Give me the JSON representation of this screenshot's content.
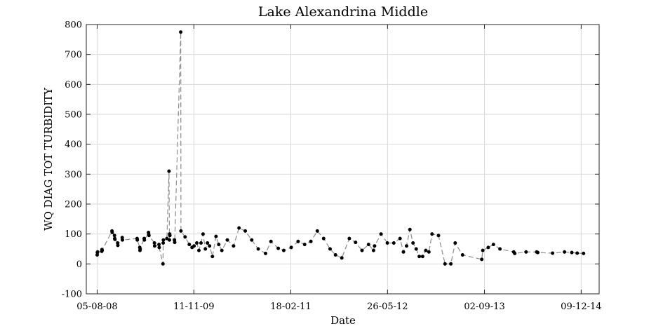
{
  "chart_data": {
    "type": "line",
    "title": "Lake Alexandrina Middle",
    "xlabel": "Date",
    "ylabel": "WQ DIAG TOT TURBIDITY",
    "xlim": [
      "2008-06-14",
      "2015-03-05"
    ],
    "ylim": [
      -100,
      800
    ],
    "yticks": [
      -100,
      0,
      100,
      200,
      300,
      400,
      500,
      600,
      700,
      800
    ],
    "xticks": [
      {
        "date": "2008-08-05",
        "label": "05-08-08"
      },
      {
        "date": "2009-11-11",
        "label": "11-11-09"
      },
      {
        "date": "2011-02-18",
        "label": "18-02-11"
      },
      {
        "date": "2012-05-26",
        "label": "26-05-12"
      },
      {
        "date": "2013-09-02",
        "label": "02-09-13"
      },
      {
        "date": "2014-12-09",
        "label": "09-12-14"
      }
    ],
    "grid": true,
    "colors": {
      "line": "#8c8c8c",
      "marker": "#000000",
      "grid": "#d9d9d9"
    },
    "series": [
      {
        "x": [
          "2008-08-05",
          "2008-08-06",
          "2008-08-07",
          "2008-08-27",
          "2008-08-28",
          "2008-08-29",
          "2008-10-15",
          "2008-10-16",
          "2008-10-27",
          "2008-10-28",
          "2008-10-29",
          "2008-11-11",
          "2008-11-12",
          "2008-12-03",
          "2008-12-04",
          "2009-02-12",
          "2009-02-13",
          "2009-02-25",
          "2009-02-26",
          "2009-02-27",
          "2009-03-18",
          "2009-03-19",
          "2009-04-08",
          "2009-04-09",
          "2009-04-10",
          "2009-05-06",
          "2009-05-07",
          "2009-05-28",
          "2009-05-29",
          "2009-06-16",
          "2009-06-17",
          "2009-06-18",
          "2009-07-05",
          "2009-07-15",
          "2009-07-17",
          "2009-07-18",
          "2009-07-19",
          "2009-08-10",
          "2009-08-11",
          "2009-09-09",
          "2009-09-10",
          "2009-09-30",
          "2009-10-20",
          "2009-11-02",
          "2009-11-12",
          "2009-11-25",
          "2009-12-05",
          "2009-12-15",
          "2009-12-25",
          "2010-01-05",
          "2010-01-15",
          "2010-01-25",
          "2010-02-08",
          "2010-02-25",
          "2010-03-10",
          "2010-03-25",
          "2010-04-20",
          "2010-05-20",
          "2010-06-15",
          "2010-07-15",
          "2010-08-15",
          "2010-09-15",
          "2010-10-20",
          "2010-11-15",
          "2010-12-20",
          "2011-01-15",
          "2011-02-20",
          "2011-03-25",
          "2011-04-25",
          "2011-05-25",
          "2011-06-25",
          "2011-07-25",
          "2011-08-25",
          "2011-09-20",
          "2011-10-20",
          "2011-11-25",
          "2011-12-25",
          "2012-01-25",
          "2012-02-25",
          "2012-03-20",
          "2012-03-25",
          "2012-04-25",
          "2012-05-25",
          "2012-06-25",
          "2012-07-25",
          "2012-08-10",
          "2012-08-25",
          "2012-09-10",
          "2012-09-25",
          "2012-10-10",
          "2012-10-25",
          "2012-11-10",
          "2012-11-25",
          "2012-12-10",
          "2012-12-25",
          "2013-01-25",
          "2013-02-25",
          "2013-03-25",
          "2013-04-15",
          "2013-05-20",
          "2013-08-20",
          "2013-08-25",
          "2013-09-20",
          "2013-10-15",
          "2013-11-15",
          "2014-01-20",
          "2014-01-25",
          "2014-03-20",
          "2014-05-10",
          "2014-05-15",
          "2014-07-25",
          "2014-09-20",
          "2014-10-25",
          "2014-11-20",
          "2014-12-20"
        ],
        "y": [
          30,
          38,
          40,
          42,
          48,
          45,
          110,
          105,
          95,
          85,
          82,
          70,
          62,
          88,
          80,
          85,
          80,
          55,
          45,
          50,
          85,
          80,
          105,
          98,
          95,
          70,
          60,
          65,
          55,
          0,
          70,
          80,
          85,
          310,
          80,
          100,
          95,
          80,
          72,
          775,
          110,
          90,
          65,
          55,
          60,
          70,
          45,
          70,
          100,
          50,
          70,
          60,
          25,
          92,
          65,
          45,
          80,
          60,
          120,
          110,
          80,
          50,
          35,
          75,
          52,
          45,
          55,
          75,
          65,
          75,
          110,
          85,
          50,
          30,
          20,
          85,
          72,
          45,
          65,
          45,
          60,
          100,
          70,
          70,
          85,
          40,
          60,
          115,
          70,
          50,
          25,
          25,
          45,
          40,
          100,
          95,
          0,
          0,
          70,
          30,
          15,
          45,
          55,
          65,
          50,
          40,
          35,
          40,
          40,
          38,
          36,
          40,
          38,
          36,
          35
        ]
      }
    ]
  }
}
